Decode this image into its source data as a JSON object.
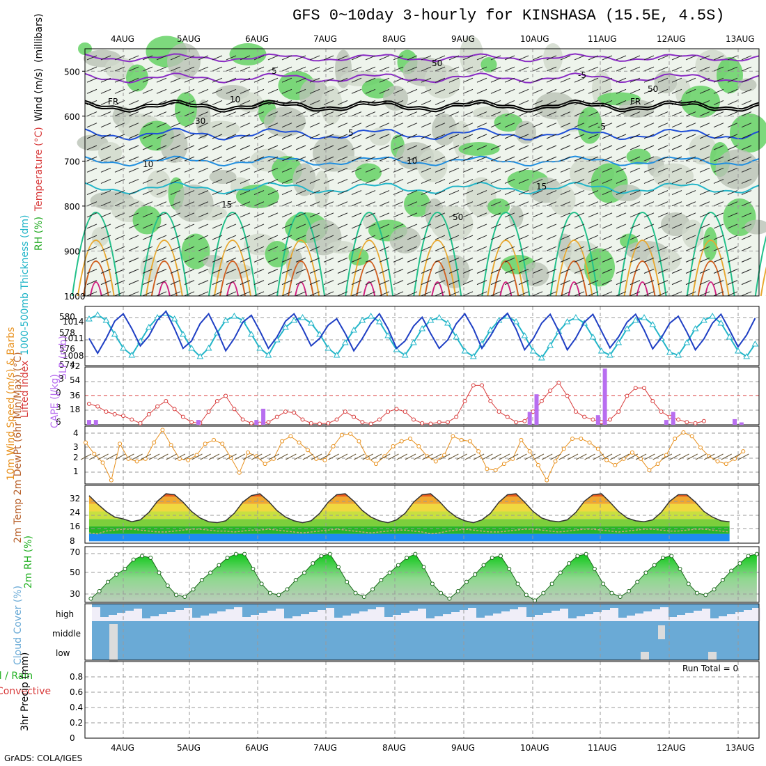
{
  "title": "GFS 0~10day 3-hourly for KINSHASA (15.5E, 4.5S)",
  "footer": "GrADS: COLA/IGES",
  "colors": {
    "grid": "#999999",
    "cyan": "#22b5c8",
    "blue": "#1f3fc4",
    "red": "#d83a3a",
    "purple": "#b86ef0",
    "orange": "#e8901c",
    "green": "#22b022",
    "cloud": "#6aaad6",
    "cloud_gap": "#f0eef8",
    "rh_gray": "#b9c2b5",
    "rh_green": "#5ccf5c"
  },
  "chart_data": [
    {
      "type": "heatmap",
      "name": "upper-air cross section",
      "ylabel_parts": [
        "RH (%)",
        "Temperature (°C)",
        "Wind (m/s)",
        "(millibars)"
      ],
      "yticks": [
        "500",
        "600",
        "700",
        "800",
        "900",
        "1000"
      ],
      "ylim": [
        450,
        1000
      ],
      "contour_labels": [
        "5",
        "-5",
        "FR",
        "FR",
        "5",
        "-5",
        "10",
        "15",
        "15",
        "10",
        "50",
        "50",
        "10",
        "30",
        "50"
      ],
      "date_labels": [
        "4AUG",
        "5AUG",
        "6AUG",
        "7AUG",
        "8AUG",
        "9AUG",
        "10AUG",
        "11AUG",
        "12AUG",
        "13AUG"
      ]
    },
    {
      "type": "line",
      "name": "thickness and SLP",
      "ylabel_left": "1000-500mb Thickness (dm)",
      "ylabel_right": "SLP (mb)",
      "left_ticks": [
        "580",
        "578",
        "576",
        "574"
      ],
      "right_ticks": [
        "1014",
        "1011",
        "1008"
      ],
      "series": [
        {
          "name": "Thickness",
          "color": "#22b5c8",
          "ylim": [
            573.5,
            582
          ],
          "values": [
            580.2,
            580.8,
            580.0,
            578.0,
            576.0,
            575.0,
            577.0,
            579.0,
            580.4,
            581.0,
            580.2,
            578.0,
            576.0,
            574.8,
            576.0,
            578.2,
            580.0,
            580.6,
            580.0,
            578.0,
            576.0,
            575.0,
            577.2,
            579.0,
            580.0,
            580.4,
            579.6,
            578.0,
            576.0,
            575.0,
            576.8,
            578.6,
            580.0,
            580.6,
            579.8,
            577.8,
            575.8,
            575.0,
            576.8,
            578.8,
            580.0,
            580.4,
            579.6,
            577.6,
            575.6,
            574.8,
            576.6,
            578.6,
            580.0,
            580.6,
            579.8,
            577.8,
            575.6,
            574.6,
            576.4,
            578.4,
            579.8,
            580.4,
            579.6,
            577.6,
            575.6,
            575.0,
            576.8,
            578.8,
            580.0,
            580.4,
            579.4,
            577.4,
            575.4,
            575.0,
            576.8,
            578.8,
            580.0,
            580.6,
            579.6,
            577.6,
            575.6,
            574.8,
            576.6
          ]
        },
        {
          "name": "SLP",
          "color": "#1f3fc4",
          "ylim": [
            1005,
            1017
          ],
          "values": [
            1010.5,
            1007.5,
            1010.5,
            1014.0,
            1015.5,
            1012.5,
            1009.0,
            1011.0,
            1014.2,
            1016.0,
            1012.5,
            1008.5,
            1010.0,
            1013.5,
            1015.5,
            1012.0,
            1008.0,
            1010.5,
            1013.8,
            1015.2,
            1012.0,
            1008.5,
            1010.8,
            1014.0,
            1015.5,
            1012.5,
            1009.0,
            1010.5,
            1013.2,
            1014.5,
            1011.5,
            1008.0,
            1010.5,
            1013.5,
            1015.5,
            1012.5,
            1008.5,
            1010.0,
            1013.0,
            1014.8,
            1011.5,
            1008.5,
            1010.2,
            1013.5,
            1015.5,
            1012.5,
            1008.5,
            1011.0,
            1014.0,
            1015.6,
            1012.4,
            1008.2,
            1010.4,
            1013.6,
            1015.4,
            1012.0,
            1008.2,
            1010.6,
            1013.8,
            1015.4,
            1012.0,
            1008.6,
            1010.8,
            1013.8,
            1015.4,
            1012.2,
            1008.4,
            1010.6,
            1013.6,
            1015.0,
            1011.8,
            1008.2,
            1010.4,
            1013.6,
            1015.4,
            1012.2,
            1008.8,
            1011.2,
            1014.6
          ]
        }
      ]
    },
    {
      "type": "bar",
      "name": "lifted index and CAPE",
      "ylabel_left": "Lifted Index",
      "ylabel_right": "CAPE (J/kg)",
      "left_ticks": [
        "-3",
        "0",
        "3",
        "6"
      ],
      "right_ticks": [
        "72",
        "54",
        "36",
        "18"
      ],
      "lifted_index": [
        2.5,
        3.0,
        4.0,
        4.5,
        4.8,
        5.5,
        6.2,
        4.5,
        3.0,
        2.0,
        3.5,
        5.0,
        6.0,
        6.2,
        4.0,
        2.0,
        1.0,
        3.5,
        5.5,
        6.2,
        6.3,
        6.0,
        5.0,
        4.0,
        4.2,
        5.5,
        6.2,
        6.3,
        6.2,
        5.5,
        4.0,
        5.0,
        6.0,
        6.3,
        5.5,
        4.0,
        3.5,
        4.0,
        5.5,
        6.2,
        6.3,
        6.0,
        6.0,
        5.0,
        2.0,
        -1.0,
        -1.0,
        2.0,
        4.0,
        5.0,
        6.0,
        5.8,
        4.0,
        2.0,
        0.0,
        -1.5,
        1.0,
        4.0,
        5.0,
        5.5,
        6.0,
        5.5,
        4.0,
        1.0,
        -0.5,
        -0.5,
        2.0,
        4.0,
        5.0,
        5.5,
        6.0,
        6.2,
        5.8
      ],
      "cape_times": [
        0.0,
        0.1,
        1.6,
        2.45,
        2.55,
        6.45,
        6.55,
        7.45,
        7.55,
        8.45,
        8.55,
        9.45,
        9.55
      ],
      "cape_values": [
        6,
        6,
        6,
        6,
        20,
        16,
        38,
        12,
        70,
        6,
        16,
        7,
        3
      ]
    },
    {
      "type": "line",
      "name": "10m wind speed and barbs",
      "ylabel": "10m Wind Speed (m/s) & Barbs",
      "yticks": [
        "4",
        "3",
        "2",
        "1"
      ],
      "ylim": [
        0.0,
        4.6
      ],
      "values": [
        3.3,
        2.4,
        1.7,
        0.3,
        3.2,
        2.0,
        1.8,
        2.0,
        3.3,
        4.3,
        3.1,
        2.0,
        1.9,
        2.3,
        3.2,
        3.5,
        3.2,
        2.1,
        0.9,
        2.5,
        2.2,
        1.6,
        2.0,
        3.4,
        3.8,
        3.3,
        2.7,
        2.0,
        1.9,
        3.0,
        3.9,
        4.0,
        3.4,
        2.1,
        1.6,
        2.2,
        3.0,
        3.4,
        3.6,
        3.0,
        2.2,
        1.8,
        2.3,
        3.8,
        3.5,
        3.4,
        2.6,
        1.2,
        1.1,
        1.6,
        2.0,
        3.5,
        2.6,
        1.5,
        0.3,
        1.8,
        2.8,
        3.6,
        3.6,
        3.3,
        2.8,
        1.9,
        1.5,
        2.0,
        2.5,
        2.0,
        1.1,
        1.6,
        2.3,
        3.6,
        4.1,
        3.8,
        2.9,
        2.2,
        1.8,
        1.6,
        2.0,
        2.6
      ]
    },
    {
      "type": "area",
      "name": "2m temperature and dewpoint",
      "ylabel": "2m Temp 2m DewPt (6hr Min/Max) (°C)",
      "yticks": [
        "32",
        "24",
        "16",
        "8"
      ],
      "ylim": [
        7,
        38
      ],
      "temperature": [
        32.5,
        28.0,
        24.0,
        21.0,
        20.0,
        18.5,
        19.5,
        23.5,
        29.5,
        33.5,
        33.0,
        29.0,
        24.0,
        20.5,
        18.5,
        18.0,
        19.0,
        23.0,
        29.0,
        32.5,
        33.5,
        29.5,
        24.5,
        21.0,
        19.0,
        18.0,
        19.0,
        23.0,
        29.0,
        33.0,
        33.5,
        29.5,
        24.5,
        21.0,
        19.0,
        18.0,
        19.5,
        23.0,
        29.0,
        33.0,
        33.5,
        29.5,
        24.5,
        21.0,
        19.0,
        18.0,
        19.5,
        23.0,
        29.0,
        33.0,
        33.5,
        29.0,
        24.0,
        20.5,
        19.0,
        18.5,
        19.5,
        23.5,
        29.5,
        33.0,
        33.5,
        29.0,
        24.0,
        20.5,
        19.0,
        18.5,
        19.5,
        23.5,
        29.5,
        33.0,
        33.0,
        29.0,
        24.0,
        21.0,
        19.0,
        18.5
      ],
      "dewpoint": [
        12.5,
        12.0,
        13.5,
        14.0,
        14.5,
        14.5,
        14.0,
        13.5,
        13.0,
        13.0,
        13.5,
        14.0,
        14.5,
        14.5,
        14.0,
        13.5,
        13.5,
        13.0,
        13.5,
        14.0,
        14.0,
        14.5,
        14.0,
        13.5,
        13.0,
        12.5,
        13.0,
        13.5,
        14.0,
        14.5,
        14.0,
        13.5,
        13.0,
        12.5,
        13.0,
        13.5,
        14.0,
        14.0,
        13.5,
        13.0,
        12.0,
        12.5,
        13.5,
        14.0,
        14.5,
        14.0,
        13.5,
        13.0,
        13.0,
        13.5,
        14.0,
        14.5,
        14.5,
        14.0,
        13.5,
        13.0,
        13.5,
        14.0,
        14.5,
        14.5,
        14.0,
        13.5,
        13.0,
        13.5,
        14.0,
        14.5,
        14.5,
        14.0,
        13.5,
        13.5,
        14.0,
        14.5,
        14.5,
        14.0,
        13.5,
        13.0
      ]
    },
    {
      "type": "area",
      "name": "2m relative humidity",
      "ylabel": "2m RH (%)",
      "yticks": [
        "70",
        "50",
        "30"
      ],
      "ylim": [
        20,
        80
      ],
      "values": [
        22,
        24,
        32,
        42,
        50,
        56,
        66,
        70,
        68,
        52,
        38,
        28,
        26,
        34,
        44,
        52,
        60,
        68,
        72,
        72,
        56,
        40,
        30,
        28,
        34,
        44,
        52,
        62,
        70,
        72,
        58,
        42,
        30,
        26,
        34,
        44,
        52,
        60,
        68,
        72,
        58,
        40,
        30,
        24,
        32,
        42,
        50,
        60,
        68,
        70,
        56,
        40,
        28,
        22,
        30,
        40,
        52,
        62,
        70,
        72,
        56,
        40,
        30,
        26,
        32,
        42,
        52,
        60,
        68,
        70,
        56,
        40,
        30,
        28,
        34,
        44,
        54,
        62,
        70,
        72,
        56,
        40,
        30,
        28,
        36,
        46,
        56,
        66,
        74,
        76
      ]
    },
    {
      "type": "heatmap",
      "name": "cloud cover",
      "ylabel": "Cloud Cover (%)",
      "yticks": [
        "high",
        "middle",
        "low"
      ]
    },
    {
      "type": "bar",
      "name": "3hr precipitation",
      "ylabel_parts": [
        "Total / Rain",
        "Convective",
        "3hr Precip (mm)"
      ],
      "yticks": [
        "0.8",
        "0.6",
        "0.4",
        "0.2",
        "0"
      ],
      "ylim": [
        0,
        1.0
      ],
      "values": [],
      "annotation": "Run Total = 0"
    }
  ]
}
